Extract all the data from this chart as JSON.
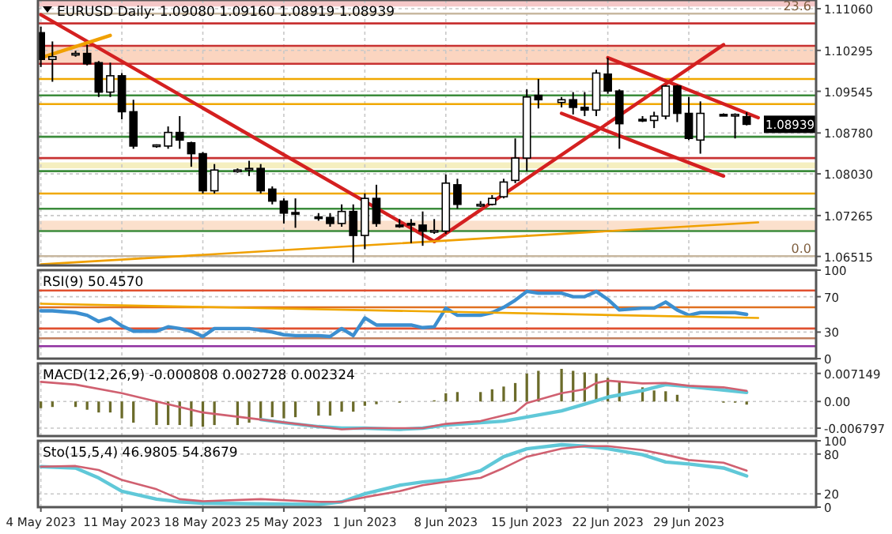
{
  "chart_data": [
    {
      "type": "candlestick",
      "title": "EURUSD Daily: 1.09080 1.09160 1.08919 1.08939",
      "grid": true,
      "tick_labels": "y",
      "x": [
        "2023-05-04",
        "2023-05-05",
        "2023-05-07",
        "2023-05-08",
        "2023-05-09",
        "2023-05-10",
        "2023-05-11",
        "2023-05-12",
        "2023-05-14",
        "2023-05-15",
        "2023-05-16",
        "2023-05-17",
        "2023-05-18",
        "2023-05-19",
        "2023-05-21",
        "2023-05-22",
        "2023-05-23",
        "2023-05-24",
        "2023-05-25",
        "2023-05-26",
        "2023-05-28",
        "2023-05-29",
        "2023-05-30",
        "2023-05-31",
        "2023-06-01",
        "2023-06-02",
        "2023-06-04",
        "2023-06-05",
        "2023-06-06",
        "2023-06-07",
        "2023-06-08",
        "2023-06-09",
        "2023-06-11",
        "2023-06-12",
        "2023-06-13",
        "2023-06-14",
        "2023-06-15",
        "2023-06-16",
        "2023-06-18",
        "2023-06-19",
        "2023-06-20",
        "2023-06-21",
        "2023-06-22",
        "2023-06-23",
        "2023-06-25",
        "2023-06-26",
        "2023-06-27",
        "2023-06-28",
        "2023-06-29",
        "2023-06-30",
        "2023-07-02",
        "2023-07-03",
        "2023-07-04"
      ],
      "ohlc": [
        [
          1.1062,
          1.1073,
          1.0999,
          1.1013
        ],
        [
          1.1013,
          1.1046,
          1.0972,
          1.1018
        ],
        [
          1.1023,
          1.1029,
          1.1018,
          1.1024
        ],
        [
          1.1024,
          1.104,
          1.1002,
          1.1005
        ],
        [
          1.1007,
          1.101,
          1.0944,
          1.0953
        ],
        [
          1.0953,
          1.1007,
          1.0944,
          1.0983
        ],
        [
          1.0983,
          1.0988,
          1.0903,
          1.0917
        ],
        [
          1.0917,
          1.0939,
          1.0849,
          1.0854
        ],
        [
          1.0854,
          1.0857,
          1.0851,
          1.0856
        ],
        [
          1.0854,
          1.089,
          1.0849,
          1.0879
        ],
        [
          1.0879,
          1.0909,
          1.0849,
          1.0865
        ],
        [
          1.086,
          1.0862,
          1.0816,
          1.084
        ],
        [
          1.084,
          1.0843,
          1.0767,
          1.0772
        ],
        [
          1.0772,
          1.0821,
          1.0767,
          1.081
        ],
        [
          1.0809,
          1.0813,
          1.0805,
          1.081
        ],
        [
          1.0812,
          1.0827,
          1.0799,
          1.0813
        ],
        [
          1.0813,
          1.0821,
          1.0767,
          1.0772
        ],
        [
          1.0775,
          1.078,
          1.0747,
          1.0753
        ],
        [
          1.0753,
          1.0758,
          1.0712,
          1.0731
        ],
        [
          1.0732,
          1.0758,
          1.0704,
          1.0731
        ],
        [
          1.0724,
          1.0731,
          1.0717,
          1.0723
        ],
        [
          1.0723,
          1.0731,
          1.0706,
          1.0712
        ],
        [
          1.0712,
          1.0747,
          1.0706,
          1.0734
        ],
        [
          1.0734,
          1.0747,
          1.064,
          1.069
        ],
        [
          1.069,
          1.0767,
          1.0665,
          1.0758
        ],
        [
          1.0758,
          1.0783,
          1.0706,
          1.0712
        ],
        [
          1.0709,
          1.072,
          1.0704,
          1.0708
        ],
        [
          1.0712,
          1.072,
          1.0676,
          1.071
        ],
        [
          1.0709,
          1.0734,
          1.0671,
          1.0698
        ],
        [
          1.0698,
          1.072,
          1.0693,
          1.0699
        ],
        [
          1.0698,
          1.0802,
          1.0693,
          1.0786
        ],
        [
          1.0783,
          1.0794,
          1.0739,
          1.0747
        ],
        [
          1.0747,
          1.0753,
          1.0742,
          1.0747
        ],
        [
          1.0747,
          1.0764,
          1.0745,
          1.0758
        ],
        [
          1.0761,
          1.0794,
          1.0758,
          1.0788
        ],
        [
          1.0791,
          1.0868,
          1.0786,
          1.0832
        ],
        [
          1.0832,
          1.0958,
          1.0808,
          1.0944
        ],
        [
          1.0947,
          1.0977,
          1.0923,
          1.0939
        ],
        [
          1.0934,
          1.0944,
          1.0925,
          1.0939
        ],
        [
          1.0939,
          1.0953,
          1.0912,
          1.0925
        ],
        [
          1.0925,
          1.0953,
          1.0909,
          1.092
        ],
        [
          1.092,
          1.0994,
          1.0909,
          1.0988
        ],
        [
          1.0986,
          1.1016,
          1.095,
          1.0955
        ],
        [
          1.0955,
          1.0958,
          1.0849,
          1.0895
        ],
        [
          1.0903,
          1.0909,
          1.0898,
          1.0902
        ],
        [
          1.0901,
          1.0917,
          1.0887,
          1.0909
        ],
        [
          1.0909,
          1.0966,
          1.0903,
          1.0964
        ],
        [
          1.0964,
          1.0966,
          1.0898,
          1.0914
        ],
        [
          1.0914,
          1.0944,
          1.0865,
          1.0868
        ],
        [
          1.0865,
          1.0936,
          1.084,
          1.0914
        ],
        [
          1.0912,
          1.0914,
          1.0909,
          1.091
        ],
        [
          1.091,
          1.0914,
          1.0868,
          1.0912
        ],
        [
          1.0908,
          1.0916,
          1.08919,
          1.08939
        ]
      ],
      "xlim": [
        "2023-05-03T18:00",
        "2023-07-10"
      ],
      "xticks": [
        {
          "value": "2023-05-04",
          "label": null
        },
        {
          "value": "2023-05-11",
          "label": null
        },
        {
          "value": "2023-05-18",
          "label": null
        },
        {
          "value": "2023-05-25",
          "label": null
        },
        {
          "value": "2023-06-01",
          "label": null
        },
        {
          "value": "2023-06-08",
          "label": null
        },
        {
          "value": "2023-06-15",
          "label": null
        },
        {
          "value": "2023-06-22",
          "label": null
        },
        {
          "value": "2023-06-29",
          "label": null
        }
      ],
      "ylim": [
        1.0635,
        1.1122
      ],
      "yticks": [
        1.06515,
        1.07265,
        {
          "value": 1.0803,
          "label": "1.08030"
        },
        {
          "value": 1.0878,
          "label": "1.08780"
        },
        1.09545,
        1.10295,
        {
          "value": 1.1106,
          "label": "1.11060"
        }
      ],
      "series": [
        {
          "type": "line",
          "color": "#d42020",
          "x": [
            "2023-05-04",
            "2023-06-07"
          ],
          "values": [
            1.1095,
            1.0679
          ]
        },
        {
          "type": "line",
          "color": "#d42020",
          "x": [
            "2023-06-07",
            "2023-07-02"
          ],
          "values": [
            1.0679,
            1.104
          ]
        },
        {
          "type": "line",
          "color": "#d42020",
          "x": [
            "2023-06-22",
            "2023-07-05"
          ],
          "values": [
            1.1016,
            1.0906
          ]
        },
        {
          "type": "line",
          "color": "#d42020",
          "x": [
            "2023-06-18",
            "2023-07-02"
          ],
          "values": [
            1.0914,
            1.0799
          ]
        },
        {
          "type": "line",
          "color": "#f0a000",
          "x": [
            "2023-05-04",
            "2023-05-10"
          ],
          "values": [
            1.1016,
            1.1057
          ]
        },
        {
          "type": "line",
          "color": "#f0a000",
          "x": [
            "2023-05-04",
            "2023-07-05"
          ],
          "values": [
            1.0637,
            1.0714
          ]
        }
      ],
      "ref_lines": [
        {
          "axis": "y",
          "value": 1.1097,
          "color": "#c8b8a0"
        },
        {
          "axis": "y",
          "value": 1.0652,
          "color": "#c8b8a0"
        },
        {
          "axis": "y",
          "value": 1.1079,
          "color": "#c83232"
        },
        {
          "axis": "y",
          "value": 1.1038,
          "color": "#c83232"
        },
        {
          "axis": "y",
          "value": 1.1005,
          "color": "#c83232"
        },
        {
          "axis": "y",
          "value": 1.0832,
          "color": "#c83232"
        },
        {
          "axis": "y",
          "value": 1.0977,
          "color": "#f0a800"
        },
        {
          "axis": "y",
          "value": 1.0931,
          "color": "#f0a800"
        },
        {
          "axis": "y",
          "value": 1.0767,
          "color": "#f0a800"
        },
        {
          "axis": "y",
          "value": 1.0947,
          "color": "#3c8c3c"
        },
        {
          "axis": "y",
          "value": 1.0871,
          "color": "#3c8c3c"
        },
        {
          "axis": "y",
          "value": 1.0808,
          "color": "#3c8c3c"
        },
        {
          "axis": "y",
          "value": 1.0739,
          "color": "#3c8c3c"
        },
        {
          "axis": "y",
          "value": 1.0698,
          "color": "#3c8c3c"
        }
      ],
      "bands": [
        {
          "axis": "y",
          "from": 1.1005,
          "to": 1.1038,
          "color": "#fbd5c0"
        },
        {
          "axis": "y",
          "from": 1.0698,
          "to": 1.0717,
          "color": "#fbe0cc"
        },
        {
          "axis": "y",
          "from": 1.0813,
          "to": 1.0824,
          "color": "#f5efc0"
        },
        {
          "axis": "y",
          "from": 1.111,
          "to": 1.1122,
          "color": "#f5c8c8"
        }
      ],
      "annotations": [
        {
          "text": "23.6",
          "y": 1.1097
        },
        {
          "text": "0.0",
          "y": 1.0652
        },
        "1.08939"
      ]
    },
    {
      "type": "line",
      "title": "RSI(9) 50.4570",
      "grid": true,
      "tick_labels": "y",
      "xlim": [
        "2023-05-03T18:00",
        "2023-07-10"
      ],
      "xticks": [
        {
          "value": "2023-05-04",
          "label": null
        },
        {
          "value": "2023-05-11",
          "label": null
        },
        {
          "value": "2023-05-18",
          "label": null
        },
        {
          "value": "2023-05-25",
          "label": null
        },
        {
          "value": "2023-06-01",
          "label": null
        },
        {
          "value": "2023-06-08",
          "label": null
        },
        {
          "value": "2023-06-15",
          "label": null
        },
        {
          "value": "2023-06-22",
          "label": null
        },
        {
          "value": "2023-06-29",
          "label": null
        }
      ],
      "ylim": [
        0,
        100
      ],
      "yticks": [
        0,
        30,
        70,
        100
      ],
      "x": [
        "2023-05-04",
        "2023-05-05",
        "2023-05-07",
        "2023-05-08",
        "2023-05-09",
        "2023-05-10",
        "2023-05-11",
        "2023-05-12",
        "2023-05-14",
        "2023-05-15",
        "2023-05-16",
        "2023-05-17",
        "2023-05-18",
        "2023-05-19",
        "2023-05-21",
        "2023-05-22",
        "2023-05-23",
        "2023-05-24",
        "2023-05-25",
        "2023-05-26",
        "2023-05-28",
        "2023-05-29",
        "2023-05-30",
        "2023-05-31",
        "2023-06-01",
        "2023-06-02",
        "2023-06-04",
        "2023-06-05",
        "2023-06-06",
        "2023-06-07",
        "2023-06-08",
        "2023-06-09",
        "2023-06-11",
        "2023-06-12",
        "2023-06-13",
        "2023-06-14",
        "2023-06-15",
        "2023-06-16",
        "2023-06-18",
        "2023-06-19",
        "2023-06-20",
        "2023-06-21",
        "2023-06-22",
        "2023-06-23",
        "2023-06-25",
        "2023-06-26",
        "2023-06-27",
        "2023-06-28",
        "2023-06-29",
        "2023-06-30",
        "2023-07-02",
        "2023-07-03",
        "2023-07-04"
      ],
      "series": [
        {
          "color": "#3c8fd0",
          "values": [
            54,
            54,
            52,
            49,
            42,
            46,
            37,
            31,
            31,
            36,
            34,
            31,
            25,
            34,
            34,
            34,
            32,
            30,
            27,
            26,
            26,
            25,
            34,
            26,
            46,
            38,
            38,
            38,
            35,
            36,
            57,
            49,
            49,
            52,
            58,
            66,
            76,
            74,
            74,
            70,
            70,
            76,
            67,
            55,
            57,
            57,
            64,
            55,
            49,
            52,
            52,
            52,
            50
          ]
        },
        {
          "color": "#f0a800",
          "x": [
            "2023-05-04",
            "2023-07-05"
          ],
          "values": [
            62,
            46
          ]
        }
      ],
      "ref_lines": [
        {
          "axis": "y",
          "value": 77,
          "color": "#e05030"
        },
        {
          "axis": "y",
          "value": 58,
          "color": "#e07020"
        },
        {
          "axis": "y",
          "value": 34,
          "color": "#e05030"
        },
        {
          "axis": "y",
          "value": 23,
          "color": "#c08060"
        },
        {
          "axis": "y",
          "value": 14,
          "color": "#9030a0"
        }
      ]
    },
    {
      "type": "bar",
      "title": "MACD(12,26,9) -0.000808 0.002728 0.002324",
      "grid": true,
      "tick_labels": "y",
      "xlim": [
        "2023-05-03T18:00",
        "2023-07-10"
      ],
      "xticks": [
        {
          "value": "2023-05-04",
          "label": null
        },
        {
          "value": "2023-05-11",
          "label": null
        },
        {
          "value": "2023-05-18",
          "label": null
        },
        {
          "value": "2023-05-25",
          "label": null
        },
        {
          "value": "2023-06-01",
          "label": null
        },
        {
          "value": "2023-06-08",
          "label": null
        },
        {
          "value": "2023-06-15",
          "label": null
        },
        {
          "value": "2023-06-22",
          "label": null
        },
        {
          "value": "2023-06-29",
          "label": null
        }
      ],
      "ylim": [
        -0.0088,
        0.0097
      ],
      "yticks": [
        -0.006797,
        {
          "value": 0,
          "label": "0.00"
        },
        0.007149
      ],
      "x": [
        "2023-05-04",
        "2023-05-05",
        "2023-05-07",
        "2023-05-08",
        "2023-05-09",
        "2023-05-10",
        "2023-05-11",
        "2023-05-12",
        "2023-05-14",
        "2023-05-15",
        "2023-05-16",
        "2023-05-17",
        "2023-05-18",
        "2023-05-19",
        "2023-05-21",
        "2023-05-22",
        "2023-05-23",
        "2023-05-24",
        "2023-05-25",
        "2023-05-26",
        "2023-05-28",
        "2023-05-29",
        "2023-05-30",
        "2023-05-31",
        "2023-06-01",
        "2023-06-02",
        "2023-06-04",
        "2023-06-05",
        "2023-06-06",
        "2023-06-07",
        "2023-06-08",
        "2023-06-09",
        "2023-06-11",
        "2023-06-12",
        "2023-06-13",
        "2023-06-14",
        "2023-06-15",
        "2023-06-16",
        "2023-06-18",
        "2023-06-19",
        "2023-06-20",
        "2023-06-21",
        "2023-06-22",
        "2023-06-23",
        "2023-06-25",
        "2023-06-26",
        "2023-06-27",
        "2023-06-28",
        "2023-06-29",
        "2023-06-30",
        "2023-07-02",
        "2023-07-03",
        "2023-07-04"
      ],
      "series": [
        {
          "color": "#6b6b2a",
          "values": [
            -0.0017,
            -0.0014,
            -0.0014,
            -0.0021,
            -0.0028,
            -0.0028,
            -0.0043,
            -0.0054,
            -0.006,
            -0.006,
            -0.006,
            -0.0064,
            -0.0064,
            -0.006,
            -0.006,
            -0.0054,
            -0.0046,
            -0.004,
            -0.0043,
            -0.004,
            -0.0036,
            -0.0036,
            -0.0026,
            -0.0026,
            -0.0011,
            -0.0007,
            -0.0003,
            0,
            0,
            0.0003,
            0.0021,
            0.0024,
            0.0024,
            0.0031,
            0.0038,
            0.0047,
            0.0071,
            0.0078,
            0.0083,
            0.0078,
            0.0074,
            0.0071,
            0.006,
            0.005,
            0.0036,
            0.0028,
            0.0026,
            0.0017,
            0,
            0,
            -0.0003,
            -0.0003,
            -0.0008
          ]
        },
        {
          "type": "line",
          "color": "#60c8d8",
          "x": [
            "2023-05-23",
            "2023-05-25",
            "2023-05-28",
            "2023-05-30",
            "2023-06-01",
            "2023-06-04",
            "2023-06-06",
            "2023-06-08",
            "2023-06-13",
            "2023-06-18",
            "2023-06-20",
            "2023-06-22",
            "2023-06-25",
            "2023-06-27",
            "2023-06-29",
            "2023-07-04"
          ],
          "values": [
            -0.0046,
            -0.0054,
            -0.0064,
            -0.0068,
            -0.0068,
            -0.0071,
            -0.0068,
            -0.006,
            -0.005,
            -0.0024,
            -0.0007,
            0.0011,
            0.0028,
            0.0043,
            0.0038,
            0.0023
          ]
        },
        {
          "type": "line",
          "color": "#d06070",
          "x": [
            "2023-05-04",
            "2023-05-07",
            "2023-05-11",
            "2023-05-14",
            "2023-05-18",
            "2023-05-23",
            "2023-05-28",
            "2023-05-30",
            "2023-06-01",
            "2023-06-06",
            "2023-06-08",
            "2023-06-11",
            "2023-06-14",
            "2023-06-15",
            "2023-06-18",
            "2023-06-20",
            "2023-06-21",
            "2023-06-22",
            "2023-06-25",
            "2023-06-27",
            "2023-06-29",
            "2023-07-02",
            "2023-07-04"
          ],
          "values": [
            0.005,
            0.0043,
            0.0021,
            0,
            -0.0028,
            -0.0046,
            -0.0064,
            -0.0071,
            -0.0068,
            -0.0068,
            -0.0057,
            -0.005,
            -0.0028,
            -0.0004,
            0.0021,
            0.0031,
            0.0047,
            0.0053,
            0.0046,
            0.0047,
            0.004,
            0.0036,
            0.0027
          ]
        }
      ]
    },
    {
      "type": "line",
      "title": "Sto(15,5,4) 46.9805 54.8679",
      "grid": true,
      "xlim": [
        "2023-05-03T18:00",
        "2023-07-10"
      ],
      "xticks": [
        {
          "value": "2023-05-04",
          "label": "4 May 2023"
        },
        {
          "value": "2023-05-11",
          "label": "11 May 2023"
        },
        {
          "value": "2023-05-18",
          "label": "18 May 2023"
        },
        {
          "value": "2023-05-25",
          "label": "25 May 2023"
        },
        {
          "value": "2023-06-01",
          "label": "1 Jun 2023"
        },
        {
          "value": "2023-06-08",
          "label": "8 Jun 2023"
        },
        {
          "value": "2023-06-15",
          "label": "15 Jun 2023"
        },
        {
          "value": "2023-06-22",
          "label": "22 Jun 2023"
        },
        {
          "value": "2023-06-29",
          "label": "29 Jun 2023"
        }
      ],
      "ylim": [
        0,
        100
      ],
      "yticks": [
        0,
        20,
        80,
        100
      ],
      "series": [
        {
          "color": "#60c8d8",
          "x": [
            "2023-05-04",
            "2023-05-07",
            "2023-05-09",
            "2023-05-11",
            "2023-05-14",
            "2023-05-16",
            "2023-05-18",
            "2023-05-28",
            "2023-05-30",
            "2023-06-01",
            "2023-06-04",
            "2023-06-06",
            "2023-06-08",
            "2023-06-11",
            "2023-06-13",
            "2023-06-15",
            "2023-06-18",
            "2023-06-20",
            "2023-06-22",
            "2023-06-25",
            "2023-06-27",
            "2023-06-29",
            "2023-07-02",
            "2023-07-04"
          ],
          "values": [
            61,
            59,
            44,
            24,
            12,
            8,
            6,
            4,
            8,
            20,
            33,
            38,
            41,
            55,
            76,
            88,
            94,
            92,
            88,
            79,
            68,
            65,
            59,
            47
          ]
        },
        {
          "color": "#d06070",
          "x": [
            "2023-05-04",
            "2023-05-07",
            "2023-05-09",
            "2023-05-11",
            "2023-05-14",
            "2023-05-16",
            "2023-05-18",
            "2023-05-23",
            "2023-05-28",
            "2023-05-30",
            "2023-06-01",
            "2023-06-04",
            "2023-06-06",
            "2023-06-08",
            "2023-06-11",
            "2023-06-13",
            "2023-06-15",
            "2023-06-18",
            "2023-06-20",
            "2023-06-22",
            "2023-06-25",
            "2023-06-27",
            "2023-06-29",
            "2023-07-02",
            "2023-07-04"
          ],
          "values": [
            61,
            62,
            56,
            41,
            27,
            12,
            9,
            12,
            8,
            8,
            15,
            24,
            33,
            38,
            44,
            59,
            76,
            88,
            92,
            92,
            86,
            79,
            71,
            67,
            55
          ]
        }
      ]
    }
  ]
}
